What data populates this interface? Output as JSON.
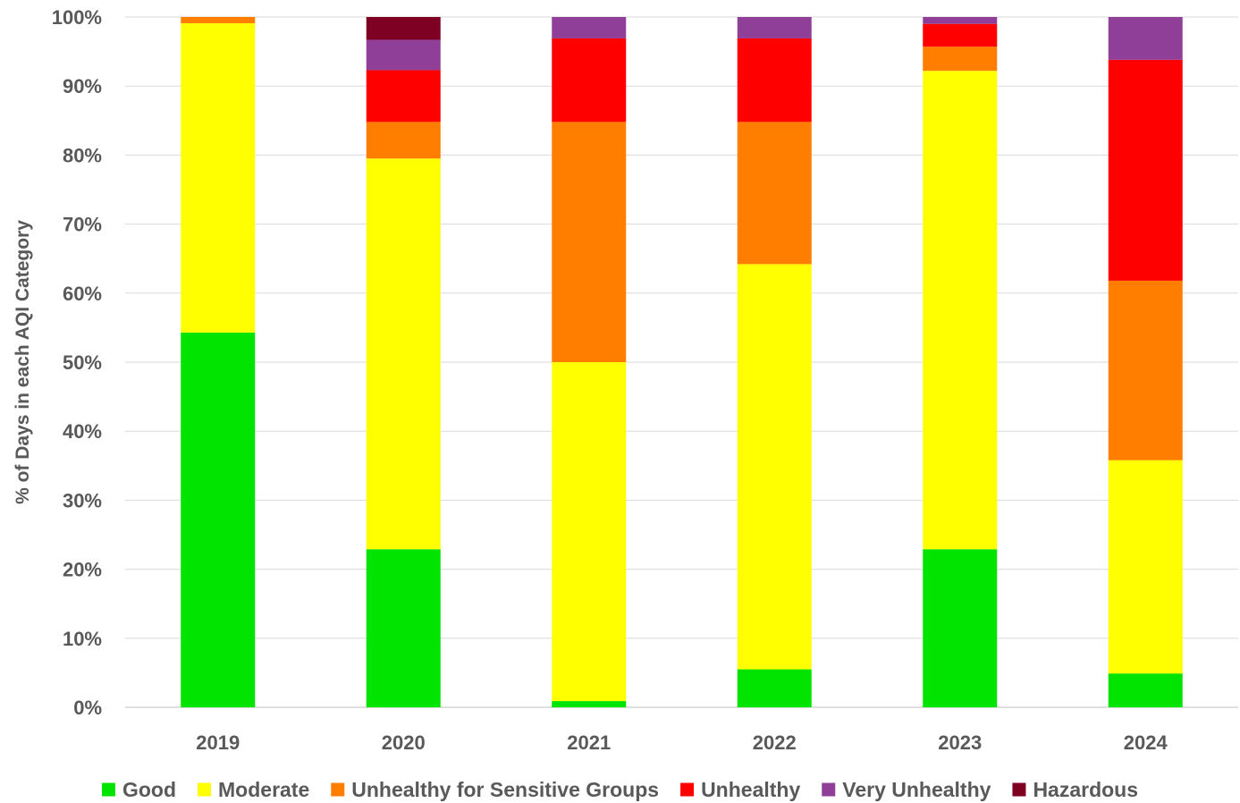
{
  "chart_data": {
    "type": "bar",
    "stacked": true,
    "percent_stacked": true,
    "categories": [
      "2019",
      "2020",
      "2021",
      "2022",
      "2023",
      "2024"
    ],
    "ylabel": "% of Days in each AQI Category",
    "xlabel": "",
    "ylim": [
      0,
      100
    ],
    "yticks": [
      "0%",
      "10%",
      "20%",
      "30%",
      "40%",
      "50%",
      "60%",
      "70%",
      "80%",
      "90%",
      "100%"
    ],
    "grid": "horizontal",
    "legend_position": "bottom",
    "series": [
      {
        "name": "Good",
        "color": "#00e400",
        "values": [
          54.3,
          22.9,
          0.9,
          5.5,
          22.9,
          4.9
        ]
      },
      {
        "name": "Moderate",
        "color": "#ffff00",
        "values": [
          44.8,
          56.6,
          49.1,
          58.7,
          69.3,
          30.9
        ]
      },
      {
        "name": "Unhealthy for Sensitive Groups",
        "color": "#ff7e00",
        "values": [
          0.9,
          5.3,
          34.8,
          20.6,
          3.5,
          26.0
        ]
      },
      {
        "name": "Unhealthy",
        "color": "#ff0000",
        "values": [
          0,
          7.5,
          12.1,
          12.1,
          3.3,
          32.0
        ]
      },
      {
        "name": "Very Unhealthy",
        "color": "#8f3f97",
        "values": [
          0,
          4.4,
          3.1,
          3.1,
          1.0,
          6.2
        ]
      },
      {
        "name": "Hazardous",
        "color": "#7e0023",
        "values": [
          0,
          3.3,
          0,
          0,
          0,
          0
        ]
      }
    ]
  }
}
